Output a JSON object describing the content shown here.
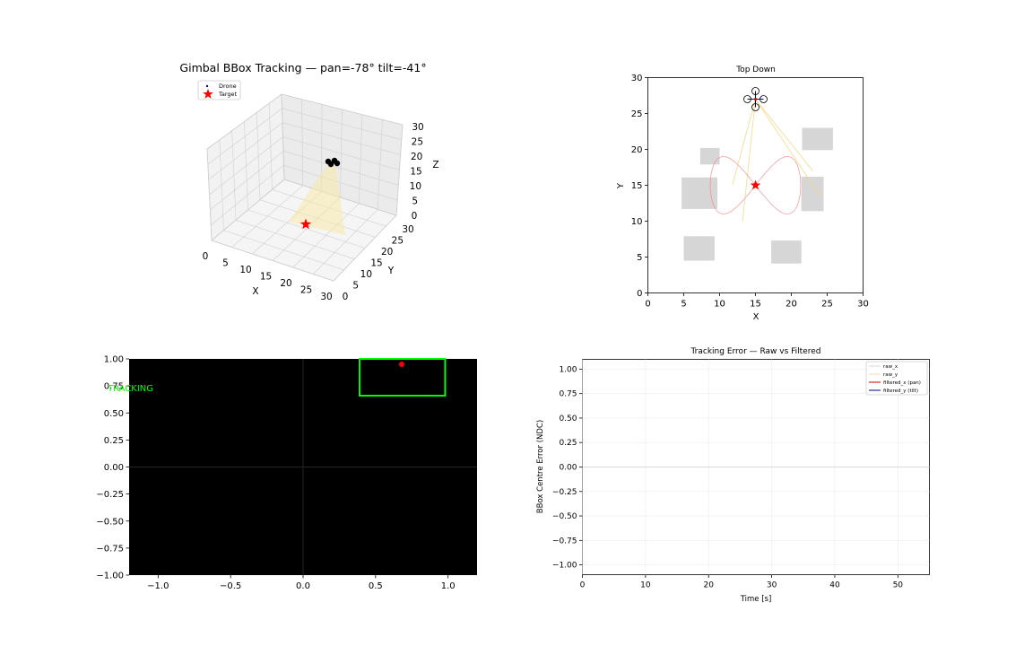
{
  "figure": {
    "colors": {
      "target": "#ff0000",
      "drone": "#000000",
      "path": "#ff7f7f",
      "beam": "#f5d98a",
      "obstacle": "#d6d6d6",
      "bbox": "#00ff00",
      "hud_text": "#00ff00",
      "filtered_x": "#cc0000",
      "filtered_y": "#000080"
    }
  },
  "chart_data": [
    {
      "type": "scatter",
      "title": "Gimbal BBox Tracking — pan=-78° tilt=-41°",
      "xlabel": "X",
      "ylabel": "Y",
      "zlabel": "Z",
      "xlim": [
        0,
        30
      ],
      "ylim": [
        0,
        30
      ],
      "zlim": [
        0,
        30
      ],
      "x_ticks": [
        "0",
        "5",
        "10",
        "15",
        "20",
        "25",
        "30"
      ],
      "y_ticks": [
        "0",
        "5",
        "10",
        "15",
        "20",
        "25",
        "30"
      ],
      "z_ticks": [
        "0",
        "5",
        "10",
        "15",
        "20",
        "25",
        "30"
      ],
      "grid": true,
      "legend_position": "top-left",
      "legend": [
        "Drone",
        "Target"
      ],
      "series": [
        {
          "name": "Drone",
          "points": [
            [
              15,
              27,
              20
            ],
            [
              14.2,
              27,
              20
            ],
            [
              15.8,
              27,
              20
            ],
            [
              15,
              27.8,
              20
            ],
            [
              15,
              26.2,
              20
            ],
            [
              15,
              27,
              20
            ]
          ]
        },
        {
          "name": "Target",
          "points": [
            [
              15,
              15,
              0
            ]
          ]
        }
      ]
    },
    {
      "type": "line",
      "title": "Top Down",
      "xlabel": "X",
      "ylabel": "Y",
      "xlim": [
        0,
        30
      ],
      "ylim": [
        0,
        30
      ],
      "x_ticks": [
        "0",
        "5",
        "10",
        "15",
        "20",
        "25",
        "30"
      ],
      "y_ticks": [
        "0",
        "5",
        "10",
        "15",
        "20",
        "25",
        "30"
      ],
      "obstacles": [
        {
          "x0": 7.3,
          "y0": 17.9,
          "x1": 10,
          "y1": 20.2
        },
        {
          "x0": 4.7,
          "y0": 11.7,
          "x1": 9.7,
          "y1": 16.1
        },
        {
          "x0": 5,
          "y0": 4.5,
          "x1": 9.3,
          "y1": 7.9
        },
        {
          "x0": 17.2,
          "y0": 4.1,
          "x1": 21.4,
          "y1": 7.3
        },
        {
          "x0": 21.4,
          "y0": 11.4,
          "x1": 24.5,
          "y1": 16.2
        },
        {
          "x0": 21.5,
          "y0": 19.9,
          "x1": 25.8,
          "y1": 23
        }
      ],
      "drone": {
        "x": 15,
        "y": 27
      },
      "target": {
        "x": 15,
        "y": 15
      },
      "path_center": [
        15,
        15
      ],
      "path_amplitude": [
        6.3,
        4
      ],
      "beam_ends": [
        [
          11.8,
          15.1
        ],
        [
          13.2,
          10
        ],
        [
          23,
          17
        ],
        [
          24,
          13.5
        ]
      ]
    },
    {
      "type": "scatter",
      "status": "TRACKING",
      "xlim": [
        -1.2,
        1.2
      ],
      "ylim": [
        -1,
        1
      ],
      "x_ticks": [
        "−1.0",
        "−0.5",
        "0.0",
        "0.5",
        "1.0"
      ],
      "y_ticks": [
        "1.00",
        "0.75",
        "0.50",
        "0.25",
        "0.00",
        "−0.25",
        "−0.50",
        "−0.75",
        "−1.00"
      ],
      "bbox": {
        "x0": 0.39,
        "y0": 0.66,
        "x1": 0.98,
        "y1": 1.0
      },
      "target_point": [
        0.68,
        0.95
      ]
    },
    {
      "type": "line",
      "title": "Tracking Error — Raw vs Filtered",
      "xlabel": "Time [s]",
      "ylabel": "BBox Centre Error (NDC)",
      "xlim": [
        0,
        55
      ],
      "ylim": [
        -1.1,
        1.1
      ],
      "x_ticks": [
        "0",
        "10",
        "20",
        "30",
        "40",
        "50"
      ],
      "y_ticks": [
        "1.00",
        "0.75",
        "0.50",
        "0.25",
        "0.00",
        "−0.25",
        "−0.50",
        "−0.75",
        "−1.00"
      ],
      "grid": true,
      "legend_position": "top-right",
      "series": [
        {
          "name": "raw_x",
          "values": []
        },
        {
          "name": "raw_y",
          "values": []
        },
        {
          "name": "filtered_x (pan)",
          "values": []
        },
        {
          "name": "filtered_y (tilt)",
          "values": []
        }
      ]
    }
  ]
}
